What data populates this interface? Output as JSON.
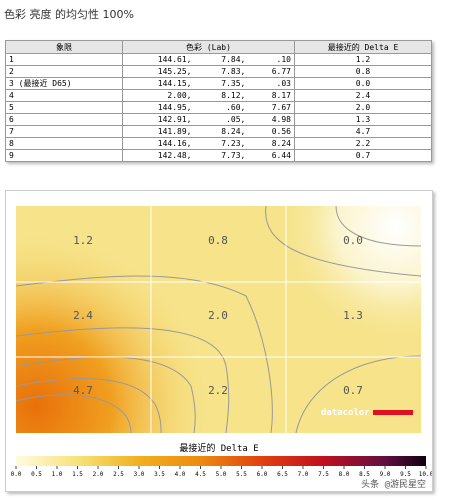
{
  "header": {
    "title": "色彩 亮度 的均匀性 100%"
  },
  "table": {
    "columns": [
      "象限",
      "色彩 (Lab)",
      "最接近的 Delta E"
    ],
    "rows": [
      [
        "1",
        "144.61,",
        "7.84,",
        ".10",
        "1.2"
      ],
      [
        "2",
        "145.25,",
        "7.83,",
        "6.77",
        "0.8"
      ],
      [
        "3 (最接近 D65)",
        "144.15,",
        "7.35,",
        ".03",
        "0.0"
      ],
      [
        "4",
        "2.00,",
        "8.12,",
        "8.17",
        "2.4"
      ],
      [
        "5",
        "144.95,",
        ".60,",
        "7.67",
        "2.0"
      ],
      [
        "6",
        "142.91,",
        ".05,",
        "4.98",
        "1.3"
      ],
      [
        "7",
        "141.89,",
        "8.24,",
        "0.56",
        "4.7"
      ],
      [
        "8",
        "144.16,",
        "7.23,",
        "8.24",
        "2.2"
      ],
      [
        "9",
        "142.48,",
        "7.73,",
        "6.44",
        "0.7"
      ]
    ]
  },
  "heatmap": {
    "cell_labels": [
      "1.2",
      "0.8",
      "0.0",
      "2.4",
      "2.0",
      "1.3",
      "4.7",
      "2.2",
      "0.7"
    ],
    "logo": "datacolor",
    "legend_title": "最接近的 Delta E",
    "legend_ticks": [
      "0.0",
      "0.5",
      "1.0",
      "1.5",
      "2.0",
      "2.5",
      "3.0",
      "3.5",
      "4.0",
      "4.5",
      "5.0",
      "5.5",
      "6.0",
      "6.5",
      "7.0",
      "7.5",
      "8.0",
      "8.5",
      "9.0",
      "9.5",
      "10.0"
    ]
  },
  "watermark": "头条 @游民星空"
}
